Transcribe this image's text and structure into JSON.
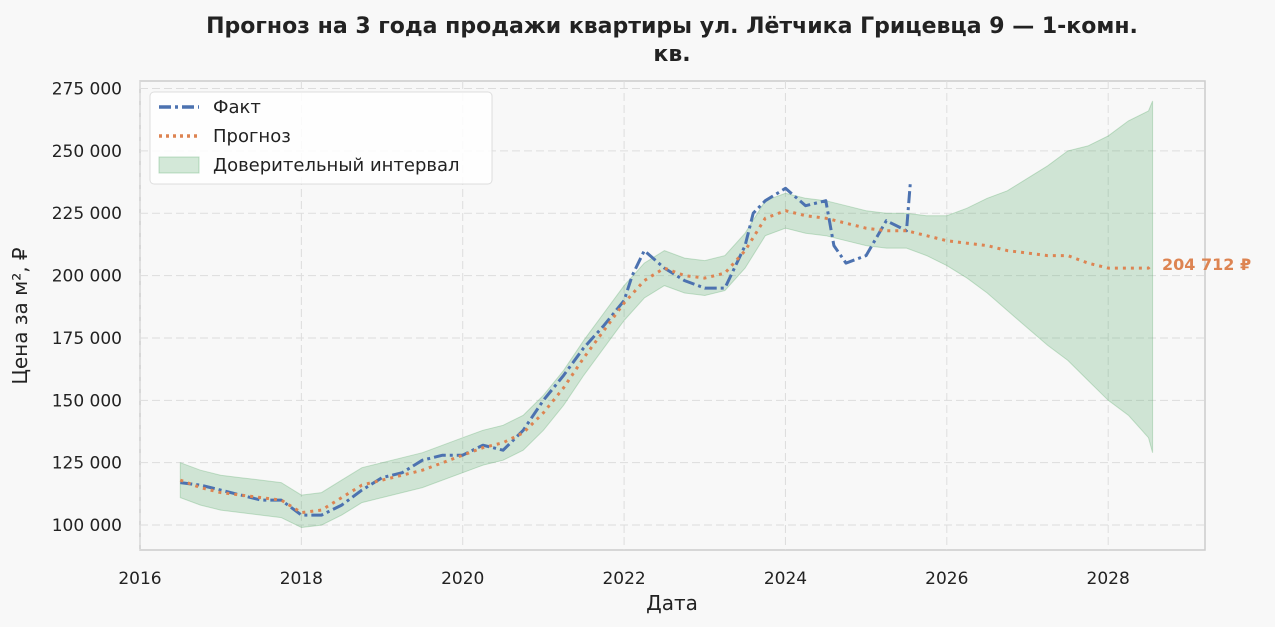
{
  "chart_data": {
    "type": "line",
    "title_line1": "Прогноз на 3 года продажи квартиры  ул. Лётчика Грицевца 9 — 1-комн.",
    "title_line2": "кв.",
    "xlabel": "Дата",
    "ylabel": "Цена за м², ₽",
    "xlim": [
      2016.0,
      2029.2
    ],
    "ylim": [
      90000,
      278000
    ],
    "x_ticks": [
      2016,
      2018,
      2020,
      2022,
      2024,
      2026,
      2028
    ],
    "x_tick_labels": [
      "2016",
      "2018",
      "2020",
      "2022",
      "2024",
      "2026",
      "2028"
    ],
    "y_ticks": [
      100000,
      125000,
      150000,
      175000,
      200000,
      225000,
      250000,
      275000
    ],
    "y_tick_labels": [
      "100 000",
      "125 000",
      "150 000",
      "175 000",
      "200 000",
      "225 000",
      "250 000",
      "275 000"
    ],
    "grid": true,
    "legend_position": "top-left",
    "legend": {
      "actual": "Факт",
      "forecast": "Прогноз",
      "interval": "Доверительный интервал"
    },
    "colors": {
      "actual": "#4c72b0",
      "forecast": "#dd8452",
      "interval": "#55a868"
    },
    "end_label": "204 712 ₽",
    "series": [
      {
        "name": "Факт",
        "style": "dashdot",
        "x": [
          2016.5,
          2016.75,
          2017.0,
          2017.25,
          2017.5,
          2017.75,
          2018.0,
          2018.25,
          2018.5,
          2018.75,
          2019.0,
          2019.25,
          2019.5,
          2019.75,
          2020.0,
          2020.25,
          2020.5,
          2020.75,
          2021.0,
          2021.25,
          2021.5,
          2021.75,
          2022.0,
          2022.1,
          2022.25,
          2022.5,
          2022.75,
          2023.0,
          2023.25,
          2023.5,
          2023.6,
          2023.75,
          2024.0,
          2024.25,
          2024.5,
          2024.6,
          2024.75,
          2025.0,
          2025.25,
          2025.5,
          2025.55
        ],
        "y": [
          117000,
          116000,
          114000,
          112000,
          110000,
          110000,
          104000,
          104000,
          108000,
          114000,
          119000,
          121000,
          126000,
          128000,
          128000,
          132000,
          130000,
          138000,
          150000,
          160000,
          171000,
          180000,
          190000,
          200000,
          210000,
          203000,
          198000,
          195000,
          195000,
          212000,
          225000,
          230000,
          235000,
          228000,
          230000,
          212000,
          205000,
          208000,
          222000,
          218000,
          238000
        ]
      },
      {
        "name": "Прогноз",
        "style": "dotted",
        "x": [
          2016.5,
          2016.75,
          2017.0,
          2017.25,
          2017.5,
          2017.75,
          2018.0,
          2018.25,
          2018.5,
          2018.75,
          2019.0,
          2019.25,
          2019.5,
          2019.75,
          2020.0,
          2020.25,
          2020.5,
          2020.75,
          2021.0,
          2021.25,
          2021.5,
          2021.75,
          2022.0,
          2022.25,
          2022.5,
          2022.75,
          2023.0,
          2023.25,
          2023.5,
          2023.75,
          2024.0,
          2024.25,
          2024.5,
          2024.75,
          2025.0,
          2025.25,
          2025.5,
          2025.75,
          2026.0,
          2026.25,
          2026.5,
          2026.75,
          2027.0,
          2027.25,
          2027.5,
          2027.75,
          2028.0,
          2028.25,
          2028.5,
          2028.55
        ],
        "y": [
          118000,
          115000,
          113000,
          112000,
          111000,
          110000,
          105000,
          106000,
          111000,
          116000,
          118000,
          120000,
          122000,
          125000,
          128000,
          131000,
          133000,
          137000,
          145000,
          155000,
          167000,
          178000,
          189000,
          198000,
          203000,
          200000,
          199000,
          201000,
          210000,
          223000,
          226000,
          224000,
          223000,
          221000,
          219000,
          218000,
          218000,
          216000,
          214000,
          213000,
          212000,
          210000,
          209000,
          208000,
          208000,
          205000,
          203000,
          203000,
          203000,
          204712
        ]
      }
    ],
    "interval": {
      "x": [
        2016.5,
        2016.75,
        2017.0,
        2017.25,
        2017.5,
        2017.75,
        2018.0,
        2018.25,
        2018.5,
        2018.75,
        2019.0,
        2019.25,
        2019.5,
        2019.75,
        2020.0,
        2020.25,
        2020.5,
        2020.75,
        2021.0,
        2021.25,
        2021.5,
        2021.75,
        2022.0,
        2022.25,
        2022.5,
        2022.75,
        2023.0,
        2023.25,
        2023.5,
        2023.75,
        2024.0,
        2024.25,
        2024.5,
        2024.75,
        2025.0,
        2025.25,
        2025.5,
        2025.75,
        2026.0,
        2026.25,
        2026.5,
        2026.75,
        2027.0,
        2027.25,
        2027.5,
        2027.75,
        2028.0,
        2028.25,
        2028.5,
        2028.55
      ],
      "lower": [
        111000,
        108000,
        106000,
        105000,
        104000,
        103000,
        99000,
        100000,
        104000,
        109000,
        111000,
        113000,
        115000,
        118000,
        121000,
        124000,
        126000,
        130000,
        138000,
        148000,
        160000,
        171000,
        182000,
        191000,
        196000,
        193000,
        192000,
        194000,
        203000,
        216000,
        219000,
        217000,
        216000,
        214000,
        212000,
        211000,
        211000,
        208000,
        204000,
        199000,
        193000,
        186000,
        179000,
        172000,
        166000,
        158000,
        150000,
        144000,
        135000,
        129000
      ],
      "upper": [
        125000,
        122000,
        120000,
        119000,
        118000,
        117000,
        112000,
        113000,
        118000,
        123000,
        125000,
        127000,
        129000,
        132000,
        135000,
        138000,
        140000,
        144000,
        152000,
        162000,
        174000,
        185000,
        196000,
        205000,
        210000,
        207000,
        206000,
        208000,
        217000,
        230000,
        233000,
        231000,
        230000,
        228000,
        226000,
        225000,
        225000,
        224000,
        224000,
        227000,
        231000,
        234000,
        239000,
        244000,
        250000,
        252000,
        256000,
        262000,
        266000,
        270000
      ]
    }
  }
}
